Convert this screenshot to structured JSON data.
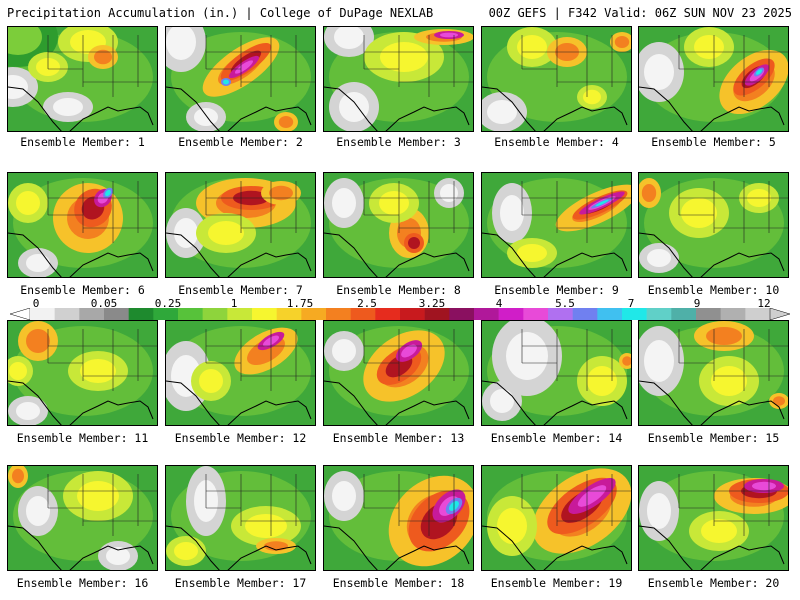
{
  "header": {
    "left": "Precipitation Accumulation (in.) | College of DuPage NEXLAB",
    "right": "00Z GEFS | F342 Valid: 06Z SUN NOV 23 2025"
  },
  "legend": {
    "tick_labels": [
      "0",
      "0.05",
      "0.25",
      "1",
      "1.75",
      "2.5",
      "3.25",
      "4",
      "5.5",
      "7",
      "9",
      "12"
    ],
    "colors": [
      "#f2f2f2",
      "#d0d0d0",
      "#a8a8a8",
      "#8a8a8a",
      "#1e8a2e",
      "#2fa83a",
      "#57c23a",
      "#8ed43c",
      "#c8e838",
      "#f6f62f",
      "#f6d22a",
      "#f6aa22",
      "#f38020",
      "#ee5a1e",
      "#e62c1e",
      "#c81a1e",
      "#a01420",
      "#8a1060",
      "#b0189a",
      "#d01ec8",
      "#e84ad8",
      "#b070f0",
      "#7080f0",
      "#40c0f0",
      "#20e8e8",
      "#60d0c8",
      "#4fb0a8",
      "#909090",
      "#b0b0b0",
      "#cfcfcf"
    ]
  },
  "members": [
    {
      "label": "Ensemble Member: 1"
    },
    {
      "label": "Ensemble Member: 2"
    },
    {
      "label": "Ensemble Member: 3"
    },
    {
      "label": "Ensemble Member: 4"
    },
    {
      "label": "Ensemble Member: 5"
    },
    {
      "label": "Ensemble Member: 6"
    },
    {
      "label": "Ensemble Member: 7"
    },
    {
      "label": "Ensemble Member: 8"
    },
    {
      "label": "Ensemble Member: 9"
    },
    {
      "label": "Ensemble Member: 10"
    },
    {
      "label": "Ensemble Member: 11"
    },
    {
      "label": "Ensemble Member: 12"
    },
    {
      "label": "Ensemble Member: 13"
    },
    {
      "label": "Ensemble Member: 14"
    },
    {
      "label": "Ensemble Member: 15"
    },
    {
      "label": "Ensemble Member: 16"
    },
    {
      "label": "Ensemble Member: 17"
    },
    {
      "label": "Ensemble Member: 18"
    },
    {
      "label": "Ensemble Member: 19"
    },
    {
      "label": "Ensemble Member: 20"
    }
  ]
}
